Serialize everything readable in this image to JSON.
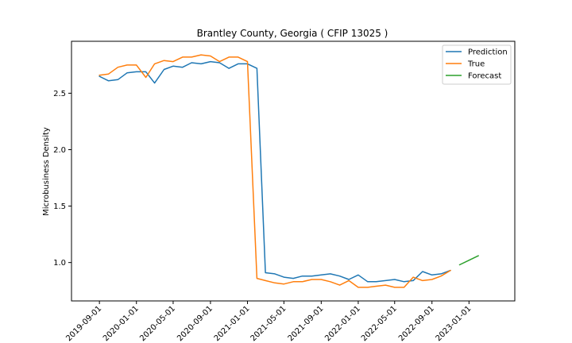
{
  "chart_data": {
    "type": "line",
    "title": "Brantley County, Georgia ( CFIP 13025 )",
    "xlabel": "",
    "ylabel": "Microbusiness Density",
    "x_ticks": [
      "2019-09-01",
      "2020-01-01",
      "2020-05-01",
      "2020-09-01",
      "2021-01-01",
      "2021-05-01",
      "2021-09-01",
      "2022-01-01",
      "2022-05-01",
      "2022-09-01",
      "2023-01-01"
    ],
    "y_ticks": [
      "1.0",
      "1.5",
      "2.0",
      "2.5"
    ],
    "y_tick_values": [
      1.0,
      1.5,
      2.0,
      2.5
    ],
    "xlim": [
      "2019-06-01",
      "2023-06-01"
    ],
    "ylim": [
      0.66,
      2.96
    ],
    "legend_position": "top-right",
    "grid": false,
    "series": [
      {
        "name": "Prediction",
        "color": "#1f77b4",
        "x": [
          "2019-09-01",
          "2019-10-01",
          "2019-11-01",
          "2019-12-01",
          "2020-01-01",
          "2020-02-01",
          "2020-03-01",
          "2020-04-01",
          "2020-05-01",
          "2020-06-01",
          "2020-07-01",
          "2020-08-01",
          "2020-09-01",
          "2020-10-01",
          "2020-11-01",
          "2020-12-01",
          "2021-01-01",
          "2021-02-01",
          "2021-03-01",
          "2021-04-01",
          "2021-05-01",
          "2021-06-01",
          "2021-07-01",
          "2021-08-01",
          "2021-09-01",
          "2021-10-01",
          "2021-11-01",
          "2021-12-01",
          "2022-01-01",
          "2022-02-01",
          "2022-03-01",
          "2022-04-01",
          "2022-05-01",
          "2022-06-01",
          "2022-07-01",
          "2022-08-01",
          "2022-09-01",
          "2022-10-01",
          "2022-11-01"
        ],
        "values": [
          2.65,
          2.61,
          2.62,
          2.68,
          2.69,
          2.69,
          2.59,
          2.71,
          2.74,
          2.73,
          2.77,
          2.76,
          2.78,
          2.77,
          2.72,
          2.76,
          2.76,
          2.72,
          0.91,
          0.9,
          0.87,
          0.86,
          0.88,
          0.88,
          0.89,
          0.9,
          0.88,
          0.85,
          0.89,
          0.83,
          0.83,
          0.84,
          0.85,
          0.83,
          0.84,
          0.92,
          0.89,
          0.9,
          0.93
        ]
      },
      {
        "name": "True",
        "color": "#ff7f0e",
        "x": [
          "2019-09-01",
          "2019-10-01",
          "2019-11-01",
          "2019-12-01",
          "2020-01-01",
          "2020-02-01",
          "2020-03-01",
          "2020-04-01",
          "2020-05-01",
          "2020-06-01",
          "2020-07-01",
          "2020-08-01",
          "2020-09-01",
          "2020-10-01",
          "2020-11-01",
          "2020-12-01",
          "2021-01-01",
          "2021-02-01",
          "2021-03-01",
          "2021-04-01",
          "2021-05-01",
          "2021-06-01",
          "2021-07-01",
          "2021-08-01",
          "2021-09-01",
          "2021-10-01",
          "2021-11-01",
          "2021-12-01",
          "2022-01-01",
          "2022-02-01",
          "2022-03-01",
          "2022-04-01",
          "2022-05-01",
          "2022-06-01",
          "2022-07-01",
          "2022-08-01",
          "2022-09-01",
          "2022-10-01",
          "2022-11-01"
        ],
        "values": [
          2.66,
          2.67,
          2.73,
          2.75,
          2.75,
          2.64,
          2.76,
          2.79,
          2.78,
          2.82,
          2.82,
          2.84,
          2.83,
          2.78,
          2.82,
          2.82,
          2.78,
          0.86,
          0.84,
          0.82,
          0.81,
          0.83,
          0.83,
          0.85,
          0.85,
          0.83,
          0.8,
          0.84,
          0.78,
          0.78,
          0.79,
          0.8,
          0.78,
          0.78,
          0.87,
          0.84,
          0.85,
          0.88,
          0.93
        ]
      },
      {
        "name": "Forecast",
        "color": "#2ca02c",
        "x": [
          "2022-12-01",
          "2023-01-01",
          "2023-02-01"
        ],
        "values": [
          0.98,
          1.02,
          1.06
        ]
      }
    ]
  }
}
